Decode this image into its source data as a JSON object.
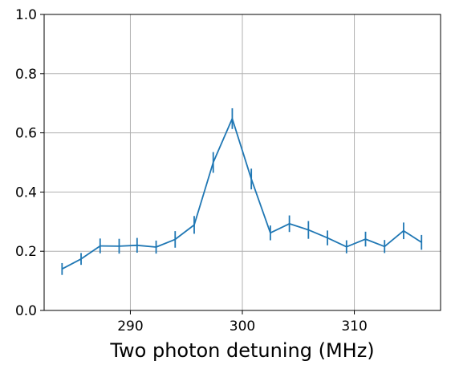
{
  "chart_data": {
    "type": "line",
    "title": "",
    "xlabel": "Two photon detuning (MHz)",
    "ylabel": "",
    "xlim": [
      282.3,
      317.7
    ],
    "ylim": [
      0.0,
      1.0
    ],
    "grid": true,
    "color": "#1f77b4",
    "xticks": [
      290,
      300,
      310
    ],
    "xtick_labels": [
      "290",
      "300",
      "310"
    ],
    "yticks": [
      0.0,
      0.2,
      0.4,
      0.6,
      0.8,
      1.0
    ],
    "ytick_labels": [
      "0.0",
      "0.2",
      "0.4",
      "0.6",
      "0.8",
      "1.0"
    ],
    "series": [
      {
        "x": [
          283.9,
          285.6,
          287.3,
          289.0,
          290.6,
          292.3,
          294.0,
          295.7,
          297.4,
          299.1,
          300.8,
          302.5,
          304.2,
          305.9,
          307.6,
          309.3,
          311.0,
          312.7,
          314.4,
          316.0
        ],
        "y": [
          0.14,
          0.174,
          0.218,
          0.217,
          0.22,
          0.214,
          0.24,
          0.289,
          0.5,
          0.648,
          0.444,
          0.262,
          0.293,
          0.272,
          0.245,
          0.215,
          0.241,
          0.216,
          0.269,
          0.23
        ],
        "err": [
          0.02,
          0.02,
          0.025,
          0.025,
          0.025,
          0.022,
          0.028,
          0.03,
          0.035,
          0.035,
          0.035,
          0.025,
          0.028,
          0.03,
          0.025,
          0.022,
          0.025,
          0.022,
          0.028,
          0.025
        ]
      }
    ]
  }
}
